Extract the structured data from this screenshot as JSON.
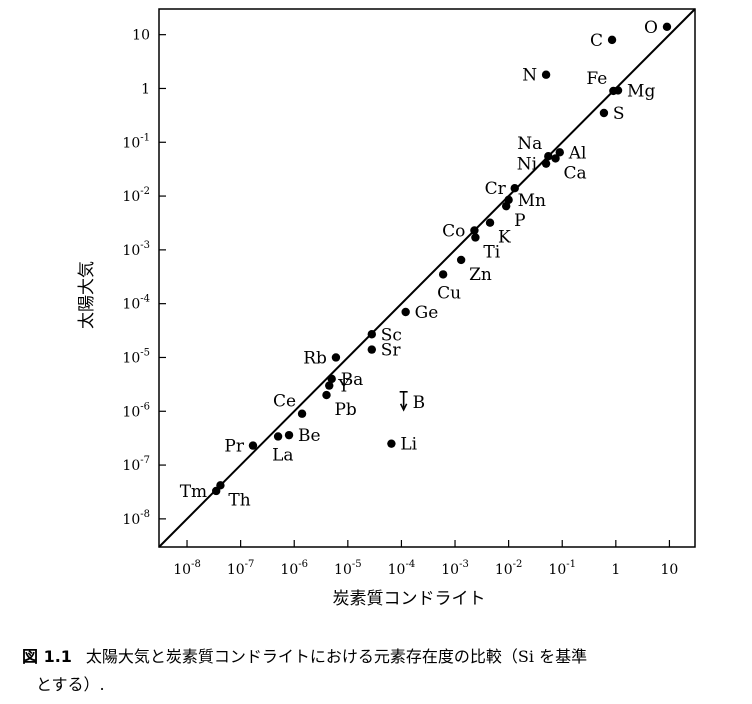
{
  "chart_data": {
    "type": "scatter",
    "xlabel": "炭素質コンドライト",
    "ylabel": "太陽大気",
    "xscale": "log",
    "yscale": "log",
    "xlim": [
      3e-09,
      30.0
    ],
    "ylim": [
      3e-09,
      30.0
    ],
    "diagonal_line": "y = x",
    "x_ticks": [
      {
        "value": 1e-08,
        "base": "10",
        "exp": "-8"
      },
      {
        "value": 1e-07,
        "base": "10",
        "exp": "-7"
      },
      {
        "value": 1e-06,
        "base": "10",
        "exp": "-6"
      },
      {
        "value": 1e-05,
        "base": "10",
        "exp": "-5"
      },
      {
        "value": 0.0001,
        "base": "10",
        "exp": "-4"
      },
      {
        "value": 0.001,
        "base": "10",
        "exp": "-3"
      },
      {
        "value": 0.01,
        "base": "10",
        "exp": "-2"
      },
      {
        "value": 0.1,
        "base": "10",
        "exp": "-1"
      },
      {
        "value": 1,
        "base": "1",
        "exp": ""
      },
      {
        "value": 10,
        "base": "10",
        "exp": ""
      }
    ],
    "y_ticks": [
      {
        "value": 1e-08,
        "base": "10",
        "exp": "-8"
      },
      {
        "value": 1e-07,
        "base": "10",
        "exp": "-7"
      },
      {
        "value": 1e-06,
        "base": "10",
        "exp": "-6"
      },
      {
        "value": 1e-05,
        "base": "10",
        "exp": "-5"
      },
      {
        "value": 0.0001,
        "base": "10",
        "exp": "-4"
      },
      {
        "value": 0.001,
        "base": "10",
        "exp": "-3"
      },
      {
        "value": 0.01,
        "base": "10",
        "exp": "-2"
      },
      {
        "value": 0.1,
        "base": "10",
        "exp": "-1"
      },
      {
        "value": 1,
        "base": "1",
        "exp": ""
      },
      {
        "value": 10,
        "base": "10",
        "exp": ""
      }
    ],
    "points": [
      {
        "label": "O",
        "x": 9.0,
        "y": 14.0,
        "label_pos": "left"
      },
      {
        "label": "C",
        "x": 0.85,
        "y": 8.0,
        "label_pos": "left"
      },
      {
        "label": "N",
        "x": 0.05,
        "y": 1.8,
        "label_pos": "left"
      },
      {
        "label": "Fe",
        "x": 0.9,
        "y": 0.9,
        "label_pos": "upper-left"
      },
      {
        "label": "Mg",
        "x": 1.1,
        "y": 0.92,
        "label_pos": "right"
      },
      {
        "label": "S",
        "x": 0.6,
        "y": 0.35,
        "label_pos": "right"
      },
      {
        "label": "Na",
        "x": 0.055,
        "y": 0.055,
        "label_pos": "upper-left"
      },
      {
        "label": "Al",
        "x": 0.09,
        "y": 0.065,
        "label_pos": "right"
      },
      {
        "label": "Ni",
        "x": 0.05,
        "y": 0.04,
        "label_pos": "left"
      },
      {
        "label": "Ca",
        "x": 0.075,
        "y": 0.05,
        "label_pos": "lower-right"
      },
      {
        "label": "Cr",
        "x": 0.013,
        "y": 0.014,
        "label_pos": "left"
      },
      {
        "label": "Mn",
        "x": 0.01,
        "y": 0.0085,
        "label_pos": "right"
      },
      {
        "label": "P",
        "x": 0.009,
        "y": 0.0065,
        "label_pos": "lower-right"
      },
      {
        "label": "Co",
        "x": 0.0023,
        "y": 0.0023,
        "label_pos": "left"
      },
      {
        "label": "K",
        "x": 0.0045,
        "y": 0.0032,
        "label_pos": "lower-right"
      },
      {
        "label": "Ti",
        "x": 0.0024,
        "y": 0.0017,
        "label_pos": "lower-right"
      },
      {
        "label": "Zn",
        "x": 0.0013,
        "y": 0.00065,
        "label_pos": "lower-right"
      },
      {
        "label": "Cu",
        "x": 0.0006,
        "y": 0.00035,
        "label_pos": "below"
      },
      {
        "label": "Ge",
        "x": 0.00012,
        "y": 7e-05,
        "label_pos": "right"
      },
      {
        "label": "Sc",
        "x": 2.8e-05,
        "y": 2.7e-05,
        "label_pos": "right"
      },
      {
        "label": "Sr",
        "x": 2.8e-05,
        "y": 1.4e-05,
        "label_pos": "right"
      },
      {
        "label": "Rb",
        "x": 6e-06,
        "y": 1e-05,
        "label_pos": "left"
      },
      {
        "label": "Ba",
        "x": 5e-06,
        "y": 4e-06,
        "label_pos": "right"
      },
      {
        "label": "Y",
        "x": 4.5e-06,
        "y": 3e-06,
        "label_pos": "right"
      },
      {
        "label": "Pb",
        "x": 4e-06,
        "y": 2e-06,
        "label_pos": "lower-right"
      },
      {
        "label": "Ce",
        "x": 1.4e-06,
        "y": 9e-07,
        "label_pos": "upper-left"
      },
      {
        "label": "B",
        "x": 0.00011,
        "y": 1.5e-06,
        "label_pos": "right",
        "upper_limit": true
      },
      {
        "label": "Be",
        "x": 8e-07,
        "y": 3.6e-07,
        "label_pos": "right"
      },
      {
        "label": "La",
        "x": 5e-07,
        "y": 3.4e-07,
        "label_pos": "below"
      },
      {
        "label": "Pr",
        "x": 1.7e-07,
        "y": 2.3e-07,
        "label_pos": "left"
      },
      {
        "label": "Li",
        "x": 6.5e-05,
        "y": 2.5e-07,
        "label_pos": "right"
      },
      {
        "label": "Tm",
        "x": 3.5e-08,
        "y": 3.3e-08,
        "label_pos": "left"
      },
      {
        "label": "Th",
        "x": 4.2e-08,
        "y": 4.2e-08,
        "label_pos": "lower-right"
      }
    ]
  },
  "caption": {
    "number": "図 1.1",
    "text_line1": "太陽大気と炭素質コンドライトにおける元素存在度の比較（Si を基準",
    "text_line2": "とする）."
  }
}
